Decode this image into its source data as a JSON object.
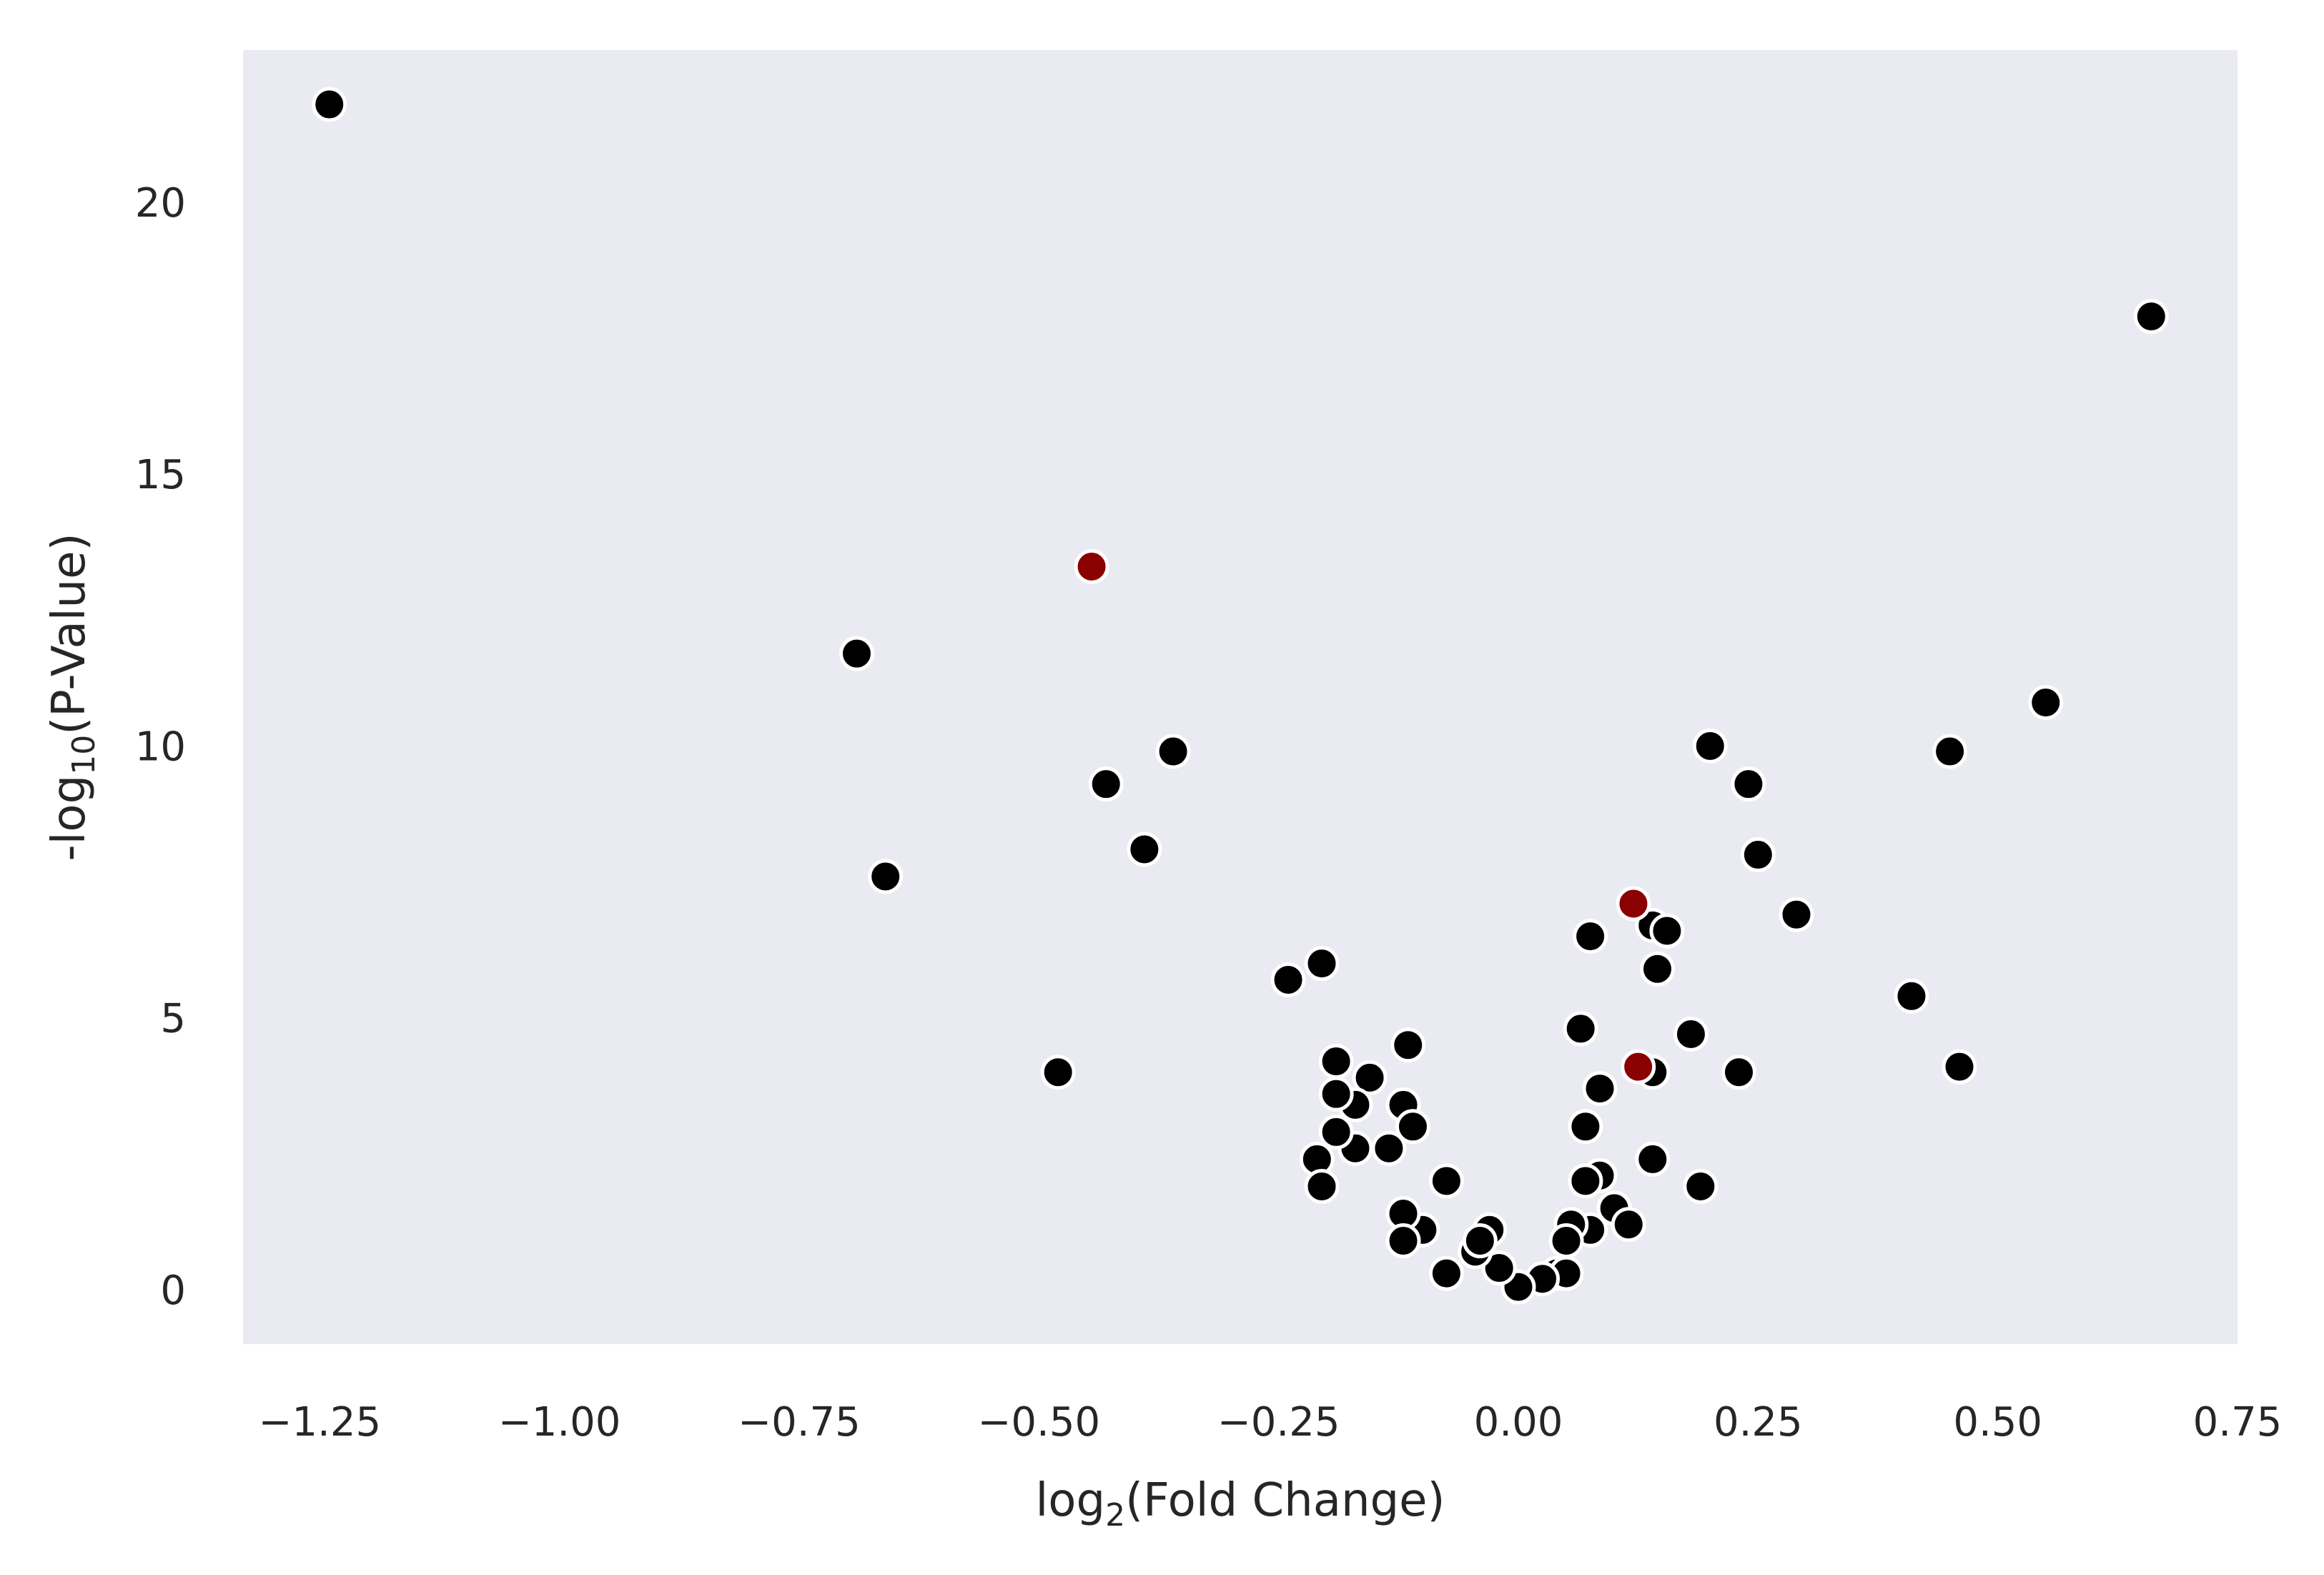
{
  "chart_data": {
    "type": "scatter",
    "title": "",
    "xlabel": "log2(Fold Change)",
    "ylabel": "-log10(P-Value)",
    "xlim": [
      -1.33,
      0.75
    ],
    "ylim": [
      -1.0,
      22.8
    ],
    "xticks": [
      "−1.25",
      "−1.00",
      "−0.75",
      "−0.50",
      "−0.25",
      "0.00",
      "0.25",
      "0.50",
      "0.75"
    ],
    "yticks": [
      "0",
      "5",
      "10",
      "15",
      "20"
    ],
    "grid": false,
    "background_color": "#eaeaf2",
    "point_color": "#000000",
    "highlight_color": "#8b0000",
    "point_edge_color": "#ffffff",
    "points": [
      {
        "x": -1.24,
        "y": 21.8
      },
      {
        "x": 0.66,
        "y": 17.9
      },
      {
        "x": -0.69,
        "y": 11.7
      },
      {
        "x": -0.66,
        "y": 7.6
      },
      {
        "x": -0.43,
        "y": 9.3
      },
      {
        "x": -0.39,
        "y": 8.1
      },
      {
        "x": -0.36,
        "y": 9.9
      },
      {
        "x": -0.48,
        "y": 4.0
      },
      {
        "x": 0.55,
        "y": 10.8
      },
      {
        "x": 0.45,
        "y": 9.9
      },
      {
        "x": 0.41,
        "y": 5.4
      },
      {
        "x": 0.46,
        "y": 4.1
      },
      {
        "x": 0.2,
        "y": 10.0
      },
      {
        "x": 0.24,
        "y": 9.3
      },
      {
        "x": 0.25,
        "y": 8.0
      },
      {
        "x": 0.29,
        "y": 6.9
      },
      {
        "x": 0.23,
        "y": 4.0
      },
      {
        "x": 0.18,
        "y": 4.7
      },
      {
        "x": 0.19,
        "y": 1.9
      },
      {
        "x": 0.14,
        "y": 6.7
      },
      {
        "x": 0.155,
        "y": 6.6
      },
      {
        "x": 0.145,
        "y": 5.9
      },
      {
        "x": 0.14,
        "y": 4.0
      },
      {
        "x": 0.14,
        "y": 2.4
      },
      {
        "x": 0.075,
        "y": 6.5
      },
      {
        "x": 0.065,
        "y": 4.8
      },
      {
        "x": 0.085,
        "y": 3.7
      },
      {
        "x": 0.07,
        "y": 3.0
      },
      {
        "x": 0.085,
        "y": 2.1
      },
      {
        "x": 0.07,
        "y": 2.0
      },
      {
        "x": 0.1,
        "y": 1.5
      },
      {
        "x": 0.115,
        "y": 1.2
      },
      {
        "x": 0.075,
        "y": 1.1
      },
      {
        "x": 0.055,
        "y": 1.2
      },
      {
        "x": 0.05,
        "y": 0.9
      },
      {
        "x": 0.04,
        "y": 0.3
      },
      {
        "x": 0.05,
        "y": 0.3
      },
      {
        "x": 0.025,
        "y": 0.2
      },
      {
        "x": 0.0,
        "y": 0.05
      },
      {
        "x": -0.02,
        "y": 0.4
      },
      {
        "x": -0.03,
        "y": 1.1
      },
      {
        "x": -0.045,
        "y": 0.7
      },
      {
        "x": -0.04,
        "y": 0.9
      },
      {
        "x": -0.075,
        "y": 0.3
      },
      {
        "x": -0.075,
        "y": 2.0
      },
      {
        "x": -0.1,
        "y": 1.1
      },
      {
        "x": -0.12,
        "y": 1.4
      },
      {
        "x": -0.12,
        "y": 0.9
      },
      {
        "x": -0.135,
        "y": 2.6
      },
      {
        "x": -0.12,
        "y": 3.4
      },
      {
        "x": -0.115,
        "y": 4.5
      },
      {
        "x": -0.11,
        "y": 3.0
      },
      {
        "x": -0.155,
        "y": 3.9
      },
      {
        "x": -0.17,
        "y": 3.4
      },
      {
        "x": -0.19,
        "y": 4.2
      },
      {
        "x": -0.19,
        "y": 3.6
      },
      {
        "x": -0.17,
        "y": 2.6
      },
      {
        "x": -0.19,
        "y": 2.9
      },
      {
        "x": -0.21,
        "y": 2.4
      },
      {
        "x": -0.205,
        "y": 1.9
      },
      {
        "x": -0.205,
        "y": 6.0
      },
      {
        "x": -0.24,
        "y": 5.7
      }
    ],
    "highlighted_points": [
      {
        "x": -0.445,
        "y": 13.3
      },
      {
        "x": 0.12,
        "y": 7.1
      },
      {
        "x": 0.125,
        "y": 4.1
      }
    ]
  }
}
